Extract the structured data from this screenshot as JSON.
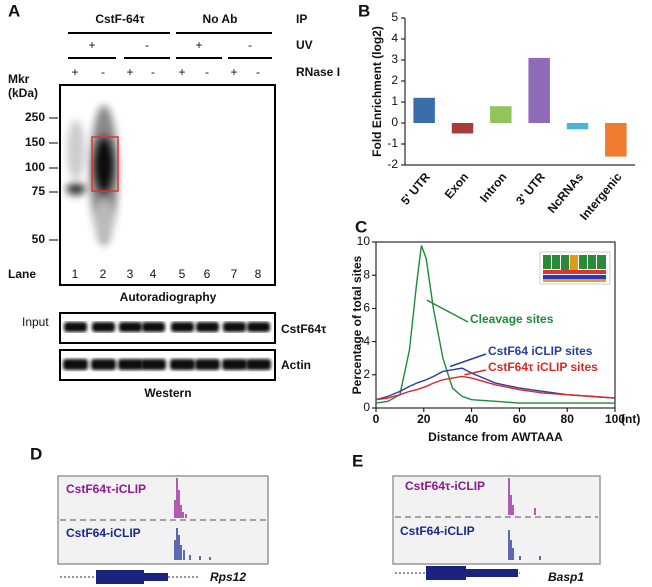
{
  "panel_a": {
    "label": "A",
    "ip_groups": [
      "CstF-64τ",
      "No Ab"
    ],
    "ip_label": "IP",
    "uv_signs": [
      "+",
      "-",
      "+",
      "-"
    ],
    "uv_label": "UV",
    "rnase_signs": [
      "+",
      "-",
      "+",
      "-",
      "+",
      "-",
      "+",
      "-"
    ],
    "rnase_label": "RNase I",
    "marker_title": [
      "Mkr",
      "(kDa)"
    ],
    "markers": [
      "250",
      "150",
      "100",
      "75",
      "50"
    ],
    "lane_label": "Lane",
    "lanes": [
      "1",
      "2",
      "3",
      "4",
      "5",
      "6",
      "7",
      "8"
    ],
    "autoradiography": "Autoradiography",
    "input_label": "Input",
    "blot_labels": [
      "CstF64τ",
      "Actin"
    ],
    "western": "Western"
  },
  "chart_data": [
    {
      "type": "bar",
      "panel_label": "B",
      "y_label": "Fold Enrichment (log2)",
      "categories": [
        "5' UTR",
        "Exon",
        "Intron",
        "3' UTR",
        "NcRNAs",
        "Intergenic"
      ],
      "series": [
        {
          "name": "Fold Enrichment (log2)",
          "values": [
            1.2,
            -0.5,
            0.8,
            3.1,
            -0.3,
            -1.6
          ]
        }
      ],
      "colors": [
        "#3a6ea8",
        "#a83c3c",
        "#92c45c",
        "#8d6bb8",
        "#4eb4d6",
        "#ef7b2e"
      ],
      "ylim": [
        -2,
        5
      ],
      "yticks": [
        -2,
        -1,
        0,
        1,
        2,
        3,
        4,
        5
      ]
    },
    {
      "type": "line",
      "panel_label": "C",
      "y_label": "Percentage of total sites",
      "x_label": "Distance from AWTAAA",
      "x_unit": "(nt)",
      "x": [
        0,
        5,
        10,
        14,
        17,
        19,
        21,
        24,
        28,
        32,
        36,
        40,
        50,
        60,
        70,
        80,
        90,
        100
      ],
      "series": [
        {
          "name": "Cleavage sites",
          "color": "#1f8a3c",
          "values": [
            0.3,
            0.4,
            0.8,
            3.5,
            7.5,
            9.8,
            9,
            6,
            3,
            1.2,
            0.7,
            0.5,
            0.4,
            0.3,
            0.3,
            0.3,
            0.3,
            0.3
          ]
        },
        {
          "name": "CstF64 iCLIP sites",
          "color": "#2a3d9c",
          "values": [
            0.5,
            0.7,
            1,
            1.3,
            1.5,
            1.6,
            1.7,
            1.9,
            2.2,
            2.3,
            2.4,
            2.1,
            1.5,
            1.2,
            1,
            0.8,
            0.7,
            0.6
          ]
        },
        {
          "name": "CstF64τ iCLIP sites",
          "color": "#d42a2a",
          "values": [
            0.5,
            0.6,
            0.8,
            1,
            1.1,
            1.2,
            1.3,
            1.5,
            1.7,
            1.8,
            1.9,
            1.8,
            1.4,
            1.1,
            0.9,
            0.8,
            0.7,
            0.6
          ]
        }
      ],
      "xlim": [
        0,
        100
      ],
      "xticks": [
        0,
        20,
        40,
        60,
        80,
        100
      ],
      "ylim": [
        0,
        10
      ],
      "yticks": [
        0,
        2,
        4,
        6,
        8,
        10
      ]
    }
  ],
  "panel_d": {
    "label": "D",
    "tracks": [
      "CstF64τ-iCLIP",
      "CstF64-iCLIP"
    ],
    "gene": "Rps12"
  },
  "panel_e": {
    "label": "E",
    "tracks": [
      "CstF64τ-iCLIP",
      "CstF64-iCLIP"
    ],
    "gene": "Basp1"
  }
}
